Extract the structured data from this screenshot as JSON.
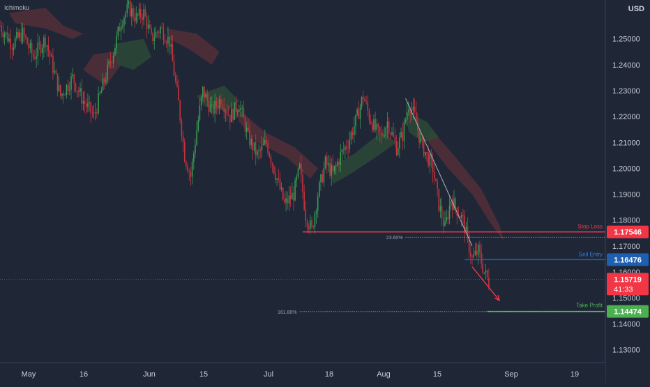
{
  "indicator_label": "Ichimoku",
  "currency_label": "USD",
  "colors": {
    "background": "#1f2737",
    "axis_panel": "#1f2737",
    "bull": "#3a9a52",
    "bear": "#c8323c",
    "stop_loss": "#f23645",
    "entry": "#1e5fb0",
    "take_profit": "#4caf50",
    "current": "#f23645",
    "text": "#c9ccd6",
    "cloud_bear": "#5a3038",
    "cloud_bull": "#2c4c36"
  },
  "chart_data": {
    "type": "candlestick",
    "ylim": [
      1.125,
      1.265
    ],
    "y_ticks": [
      "1.13000",
      "1.14000",
      "1.15000",
      "1.16000",
      "1.17000",
      "1.18000",
      "1.19000",
      "1.20000",
      "1.21000",
      "1.22000",
      "1.23000",
      "1.24000",
      "1.25000"
    ],
    "x_labels": [
      "May",
      "16",
      "Jun",
      "15",
      "Jul",
      "18",
      "Aug",
      "15",
      "Sep",
      "19"
    ],
    "levels": {
      "stop_loss": {
        "label": "Stop Loss",
        "value": "1.17546",
        "numeric": 1.17546
      },
      "sell_entry": {
        "label": "Sell Entry",
        "value": "1.16476",
        "numeric": 1.16476
      },
      "take_profit": {
        "label": "Take Profit",
        "value": "1.14474",
        "numeric": 1.14474
      },
      "current_price": {
        "value": "1.15719",
        "numeric": 1.15719,
        "countdown": "41:33"
      }
    },
    "fibonacci": [
      {
        "label": "23.60%",
        "numeric": 1.1734
      },
      {
        "label": "161.80%",
        "numeric": 1.1447
      }
    ],
    "price_path": [
      [
        0,
        1.255
      ],
      [
        8,
        1.248
      ],
      [
        15,
        1.252
      ],
      [
        22,
        1.243
      ],
      [
        30,
        1.25
      ],
      [
        40,
        1.228
      ],
      [
        48,
        1.235
      ],
      [
        55,
        1.226
      ],
      [
        62,
        1.22
      ],
      [
        68,
        1.232
      ],
      [
        75,
        1.245
      ],
      [
        80,
        1.257
      ],
      [
        85,
        1.262
      ],
      [
        90,
        1.258
      ],
      [
        95,
        1.26
      ],
      [
        100,
        1.25
      ],
      [
        106,
        1.254
      ],
      [
        112,
        1.249
      ],
      [
        118,
        1.225
      ],
      [
        122,
        1.205
      ],
      [
        126,
        1.197
      ],
      [
        130,
        1.215
      ],
      [
        134,
        1.23
      ],
      [
        140,
        1.222
      ],
      [
        146,
        1.227
      ],
      [
        152,
        1.22
      ],
      [
        158,
        1.225
      ],
      [
        164,
        1.212
      ],
      [
        170,
        1.205
      ],
      [
        176,
        1.21
      ],
      [
        182,
        1.198
      ],
      [
        188,
        1.186
      ],
      [
        194,
        1.19
      ],
      [
        198,
        1.2
      ],
      [
        202,
        1.182
      ],
      [
        206,
        1.176
      ],
      [
        210,
        1.19
      ],
      [
        215,
        1.202
      ],
      [
        220,
        1.198
      ],
      [
        225,
        1.205
      ],
      [
        230,
        1.21
      ],
      [
        235,
        1.218
      ],
      [
        240,
        1.228
      ],
      [
        244,
        1.22
      ],
      [
        248,
        1.215
      ],
      [
        252,
        1.212
      ],
      [
        256,
        1.218
      ],
      [
        262,
        1.208
      ],
      [
        266,
        1.213
      ],
      [
        270,
        1.225
      ],
      [
        274,
        1.22
      ],
      [
        278,
        1.21
      ],
      [
        282,
        1.205
      ],
      [
        286,
        1.2
      ],
      [
        290,
        1.186
      ],
      [
        294,
        1.177
      ],
      [
        298,
        1.188
      ],
      [
        302,
        1.184
      ],
      [
        306,
        1.18
      ],
      [
        309,
        1.172
      ],
      [
        312,
        1.165
      ],
      [
        316,
        1.168
      ],
      [
        320,
        1.16
      ],
      [
        323,
        1.156
      ]
    ],
    "cloud_bear": [
      [
        [
          6,
          1.26
        ],
        [
          30,
          1.262
        ],
        [
          42,
          1.255
        ],
        [
          55,
          1.252
        ],
        [
          48,
          1.25
        ],
        [
          30,
          1.254
        ],
        [
          10,
          1.256
        ]
      ],
      [
        [
          55,
          1.238
        ],
        [
          70,
          1.232
        ],
        [
          80,
          1.24
        ],
        [
          75,
          1.245
        ],
        [
          62,
          1.244
        ]
      ],
      [
        [
          110,
          1.254
        ],
        [
          130,
          1.252
        ],
        [
          145,
          1.245
        ],
        [
          140,
          1.24
        ],
        [
          125,
          1.246
        ],
        [
          112,
          1.25
        ]
      ],
      [
        [
          155,
          1.224
        ],
        [
          175,
          1.214
        ],
        [
          195,
          1.208
        ],
        [
          210,
          1.2
        ],
        [
          205,
          1.196
        ],
        [
          190,
          1.204
        ],
        [
          170,
          1.21
        ],
        [
          158,
          1.218
        ]
      ],
      [
        [
          285,
          1.215
        ],
        [
          300,
          1.205
        ],
        [
          318,
          1.192
        ],
        [
          330,
          1.178
        ],
        [
          333,
          1.172
        ],
        [
          325,
          1.178
        ],
        [
          312,
          1.19
        ],
        [
          296,
          1.2
        ],
        [
          283,
          1.21
        ]
      ]
    ],
    "cloud_bull": [
      [
        [
          75,
          1.248
        ],
        [
          95,
          1.25
        ],
        [
          100,
          1.243
        ],
        [
          88,
          1.238
        ],
        [
          78,
          1.24
        ]
      ],
      [
        [
          130,
          1.228
        ],
        [
          148,
          1.232
        ],
        [
          158,
          1.226
        ],
        [
          150,
          1.222
        ],
        [
          135,
          1.224
        ]
      ],
      [
        [
          218,
          1.2
        ],
        [
          235,
          1.206
        ],
        [
          252,
          1.214
        ],
        [
          262,
          1.21
        ],
        [
          250,
          1.205
        ],
        [
          232,
          1.198
        ],
        [
          220,
          1.194
        ]
      ],
      [
        [
          268,
          1.222
        ],
        [
          282,
          1.218
        ],
        [
          290,
          1.212
        ],
        [
          280,
          1.21
        ],
        [
          270,
          1.214
        ]
      ]
    ],
    "trendline": [
      [
        268,
        1.227
      ],
      [
        312,
        1.17
      ]
    ],
    "forecast_arrow": [
      [
        312,
        1.162
      ],
      [
        330,
        1.149
      ]
    ]
  }
}
